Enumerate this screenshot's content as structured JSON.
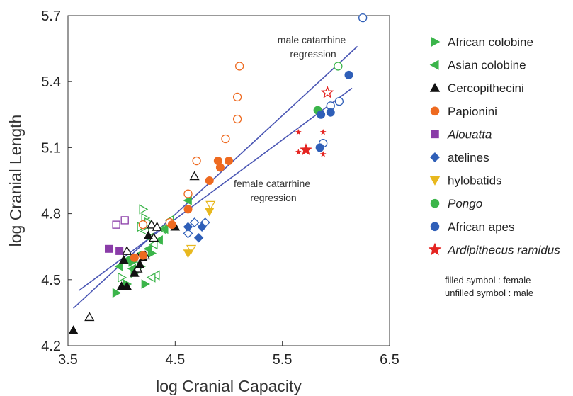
{
  "chart_data": {
    "type": "scatter",
    "xlabel": "log Cranial Capacity",
    "ylabel": "log Cranial Length",
    "xlim": [
      3.5,
      6.5
    ],
    "ylim": [
      4.2,
      5.7
    ],
    "xticks": [
      "3.5",
      "4.5",
      "5.5",
      "6.5"
    ],
    "yticks": [
      "4.2",
      "4.5",
      "4.8",
      "5.1",
      "5.4",
      "5.7"
    ],
    "legend_position": "right",
    "colors": {
      "african_colobine": "#3bb54a",
      "asian_colobine": "#3bb54a",
      "cercopithecini": "#111111",
      "papionini": "#ee6a20",
      "alouatta": "#8a3ca8",
      "atelines": "#2f5fb8",
      "hylobatids": "#e8b81e",
      "pongo": "#3bb54a",
      "african_apes": "#2f5fb8",
      "ardipithecus": "#e52421",
      "regression": "#4a56b4"
    },
    "regressions": [
      {
        "label": "male catarrhine\nregression",
        "x": [
          3.55,
          6.2
        ],
        "y": [
          4.37,
          5.56
        ]
      },
      {
        "label": "female catarrhine\nregression",
        "x": [
          3.6,
          6.15
        ],
        "y": [
          4.45,
          5.37
        ]
      }
    ],
    "series": [
      {
        "name": "African colobine",
        "key": "african_colobine",
        "shape": "triangle-right",
        "italic": false,
        "filled": [
          [
            3.95,
            4.44
          ],
          [
            4.05,
            4.48
          ],
          [
            4.12,
            4.53
          ],
          [
            4.22,
            4.48
          ],
          [
            4.18,
            4.56
          ],
          [
            4.28,
            4.62
          ],
          [
            4.1,
            4.58
          ]
        ],
        "unfilled": [
          [
            4.2,
            4.82
          ],
          [
            4.22,
            4.78
          ],
          [
            4.25,
            4.76
          ],
          [
            4.18,
            4.74
          ],
          [
            4.0,
            4.51
          ]
        ]
      },
      {
        "name": "Asian colobine",
        "key": "asian_colobine",
        "shape": "triangle-left",
        "italic": false,
        "filled": [
          [
            4.35,
            4.68
          ],
          [
            4.25,
            4.64
          ],
          [
            4.15,
            4.61
          ],
          [
            4.05,
            4.59
          ],
          [
            3.98,
            4.56
          ],
          [
            4.62,
            4.86
          ],
          [
            4.4,
            4.73
          ],
          [
            4.1,
            4.55
          ]
        ],
        "unfilled": [
          [
            4.32,
            4.52
          ],
          [
            4.28,
            4.51
          ],
          [
            4.22,
            4.72
          ],
          [
            4.38,
            4.73
          ],
          [
            4.3,
            4.66
          ],
          [
            4.26,
            4.69
          ],
          [
            4.45,
            4.77
          ]
        ]
      },
      {
        "name": "Cercopithecini",
        "key": "cercopithecini",
        "shape": "triangle-up",
        "italic": false,
        "filled": [
          [
            3.55,
            4.27
          ],
          [
            4.0,
            4.47
          ],
          [
            4.05,
            4.47
          ],
          [
            4.02,
            4.59
          ],
          [
            4.12,
            4.53
          ],
          [
            4.2,
            4.6
          ],
          [
            4.25,
            4.7
          ],
          [
            4.5,
            4.74
          ],
          [
            4.17,
            4.57
          ]
        ],
        "unfilled": [
          [
            3.7,
            4.33
          ],
          [
            4.05,
            4.63
          ],
          [
            4.15,
            4.6
          ],
          [
            4.22,
            4.61
          ],
          [
            4.28,
            4.75
          ],
          [
            4.33,
            4.74
          ],
          [
            4.3,
            4.69
          ],
          [
            4.68,
            4.97
          ],
          [
            4.15,
            4.55
          ]
        ]
      },
      {
        "name": "Papionini",
        "key": "papionini",
        "shape": "circle",
        "italic": false,
        "filled": [
          [
            4.12,
            4.6
          ],
          [
            4.2,
            4.61
          ],
          [
            4.47,
            4.75
          ],
          [
            4.62,
            4.82
          ],
          [
            4.82,
            4.95
          ],
          [
            4.9,
            5.04
          ],
          [
            4.92,
            5.01
          ],
          [
            5.0,
            5.04
          ]
        ],
        "unfilled": [
          [
            4.2,
            4.75
          ],
          [
            4.45,
            4.76
          ],
          [
            4.62,
            4.89
          ],
          [
            4.7,
            5.04
          ],
          [
            4.97,
            5.14
          ],
          [
            5.08,
            5.23
          ],
          [
            5.08,
            5.33
          ],
          [
            5.1,
            5.47
          ]
        ]
      },
      {
        "name": "Alouatta",
        "key": "alouatta",
        "shape": "square",
        "italic": true,
        "filled": [
          [
            3.88,
            4.64
          ],
          [
            3.98,
            4.63
          ]
        ],
        "unfilled": [
          [
            3.95,
            4.75
          ],
          [
            4.03,
            4.77
          ]
        ]
      },
      {
        "name": "atelines",
        "key": "atelines",
        "shape": "diamond",
        "italic": false,
        "filled": [
          [
            4.62,
            4.74
          ],
          [
            4.72,
            4.69
          ],
          [
            4.75,
            4.74
          ]
        ],
        "unfilled": [
          [
            4.62,
            4.71
          ],
          [
            4.68,
            4.76
          ],
          [
            4.78,
            4.76
          ]
        ]
      },
      {
        "name": "hylobatids",
        "key": "hylobatids",
        "shape": "triangle-down",
        "italic": false,
        "filled": [
          [
            4.62,
            4.62
          ],
          [
            4.82,
            4.81
          ]
        ],
        "unfilled": [
          [
            4.65,
            4.64
          ],
          [
            4.83,
            4.84
          ]
        ]
      },
      {
        "name": "Pongo",
        "key": "pongo",
        "shape": "circle",
        "italic": true,
        "filled": [
          [
            5.83,
            5.27
          ]
        ],
        "unfilled": [
          [
            6.02,
            5.47
          ]
        ]
      },
      {
        "name": "African apes",
        "key": "african_apes",
        "shape": "circle",
        "italic": false,
        "filled": [
          [
            5.86,
            5.25
          ],
          [
            5.95,
            5.26
          ],
          [
            6.12,
            5.43
          ],
          [
            5.85,
            5.1
          ]
        ],
        "unfilled": [
          [
            5.88,
            5.12
          ],
          [
            5.95,
            5.29
          ],
          [
            6.03,
            5.31
          ],
          [
            6.25,
            5.69
          ]
        ]
      },
      {
        "name": "Ardipithecus ramidus",
        "key": "ardipithecus",
        "shape": "star",
        "italic": true,
        "filled": [
          [
            5.72,
            5.09
          ]
        ],
        "small": [
          [
            5.65,
            5.17
          ],
          [
            5.65,
            5.08
          ],
          [
            5.88,
            5.07
          ],
          [
            5.88,
            5.17
          ]
        ],
        "unfilled": [
          [
            5.92,
            5.35
          ]
        ]
      }
    ],
    "notes": [
      "filled symbol : female",
      "unfilled symbol : male"
    ]
  }
}
